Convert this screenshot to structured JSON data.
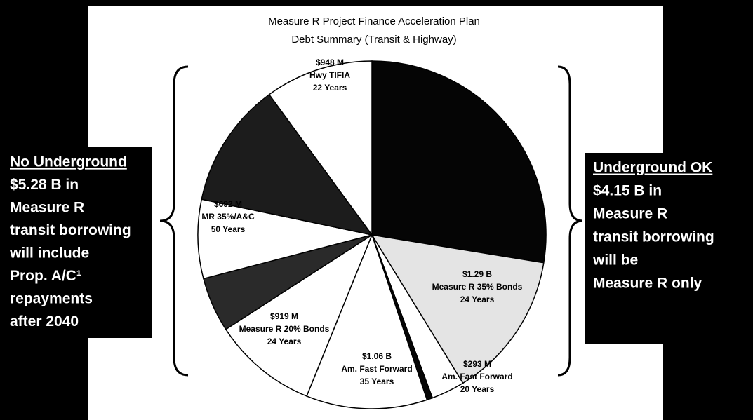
{
  "chart_data": {
    "type": "pie",
    "title": "Measure R Project Finance Acceleration Plan",
    "subtitle": "Debt Summary (Transit & Highway)",
    "categories": [
      null,
      "Measure R 35% Bonds",
      "Am. Fast Forward",
      null,
      "Am. Fast Forward",
      "Measure R 20% Bonds",
      null,
      "MR 35%/A&C",
      null,
      "Hwy TIFIA"
    ],
    "terms": [
      null,
      "24 Years",
      "20 Years",
      null,
      "35 Years",
      "24 Years",
      null,
      "50 Years",
      null,
      "22 Years"
    ],
    "values": [
      2600,
      1290,
      293,
      50,
      1060,
      919,
      480,
      692,
      1100,
      948
    ],
    "value_labels": [
      null,
      "$1.29 B",
      "$293 M",
      null,
      "$1.06 B",
      "$919 M",
      null,
      "$692 M",
      null,
      "$948 M"
    ],
    "colors": [
      "#050505",
      "#e4e4e4",
      "#ffffff",
      "#050505",
      "#ffffff",
      "#ffffff",
      "#2a2a2a",
      "#ffffff",
      "#1c1c1c",
      "#ffffff"
    ],
    "left_box": [
      "No Underground",
      "$5.28 B in",
      "Measure R",
      "transit borrowing",
      "will include",
      "Prop. A/C¹",
      "repayments",
      "after 2040"
    ],
    "right_box": [
      "Underground OK",
      "$4.15 B in",
      "Measure R",
      "transit borrowing",
      "will be",
      "Measure R only"
    ]
  }
}
